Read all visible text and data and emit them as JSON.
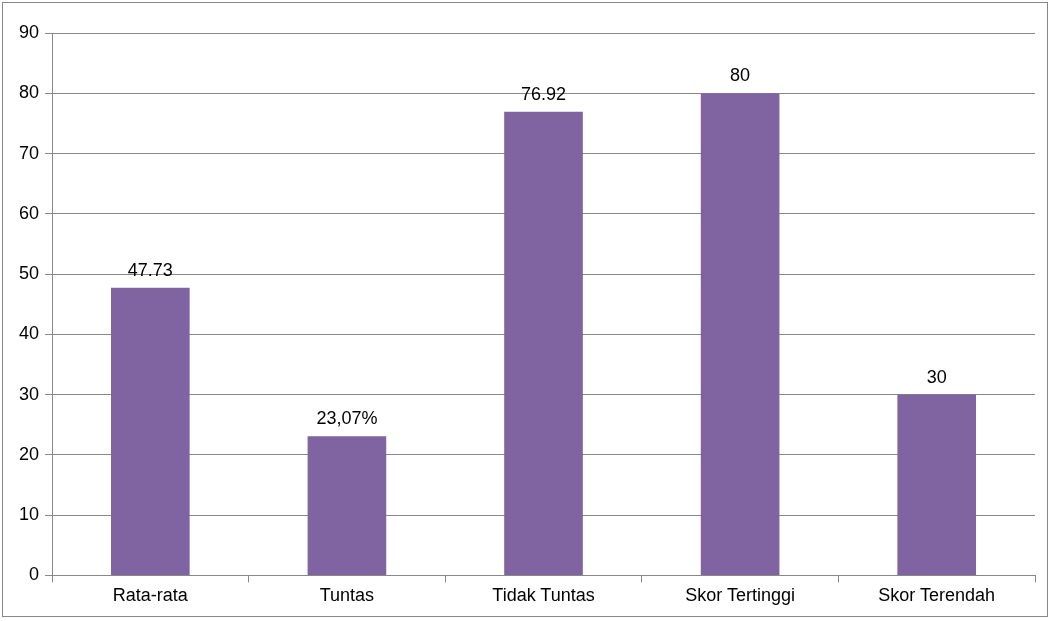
{
  "chart_data": {
    "type": "bar",
    "categories": [
      "Rata-rata",
      "Tuntas",
      "Tidak Tuntas",
      "Skor Tertinggi",
      "Skor Terendah"
    ],
    "values": [
      47.73,
      23.07,
      76.92,
      80,
      30
    ],
    "value_labels": [
      "47.73",
      "23,07%",
      "76.92",
      "80",
      "30"
    ],
    "color": "#8064a2",
    "ylim": [
      0,
      90
    ],
    "yticks": [
      0,
      10,
      20,
      30,
      40,
      50,
      60,
      70,
      80,
      90
    ],
    "grid": "y",
    "legend": false
  }
}
